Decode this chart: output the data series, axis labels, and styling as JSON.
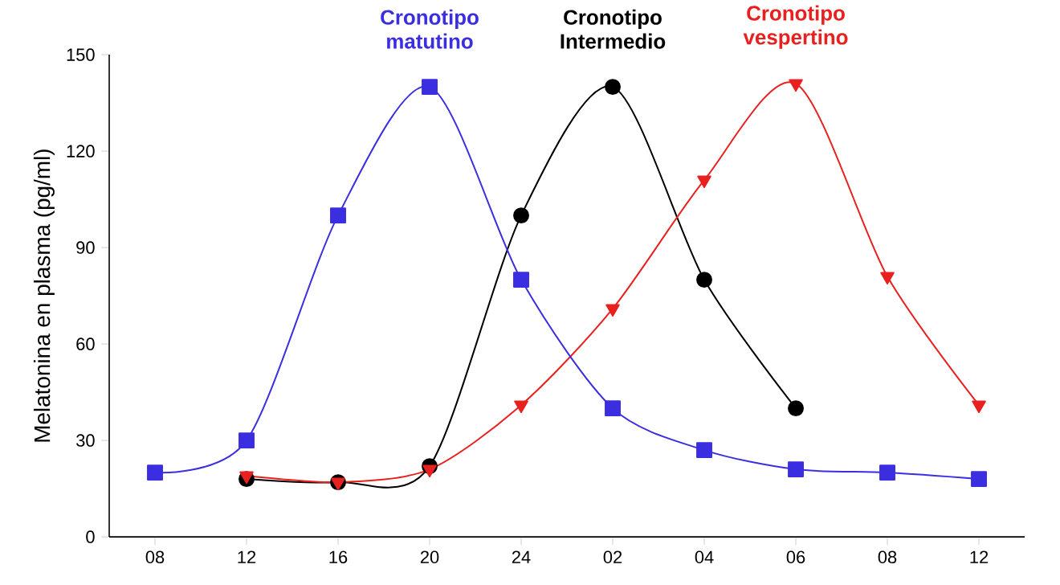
{
  "chart_data": {
    "type": "line",
    "ylabel": "Melatonina en plasma (pg/ml)",
    "categories": [
      "08",
      "12",
      "16",
      "20",
      "24",
      "02",
      "04",
      "06",
      "08",
      "12"
    ],
    "ylim": [
      0,
      150
    ],
    "yticks": [
      0,
      30,
      60,
      90,
      120,
      150
    ],
    "grid": false,
    "legend": false,
    "series": [
      {
        "name": "Cronotipo Intermedio",
        "color": "#000000",
        "marker": "circle",
        "values": [
          null,
          18,
          17,
          22,
          100,
          140,
          80,
          40,
          null,
          null
        ]
      },
      {
        "name": "Cronotipo vespertino",
        "color": "#e8201f",
        "marker": "triangle",
        "values": [
          null,
          19,
          17,
          21,
          41,
          71,
          111,
          141,
          81,
          41
        ]
      },
      {
        "name": "Cronotipo matutino",
        "color": "#3b2ee0",
        "marker": "square",
        "values": [
          20,
          30,
          100,
          140,
          80,
          40,
          27,
          21,
          20,
          18
        ]
      }
    ]
  }
}
